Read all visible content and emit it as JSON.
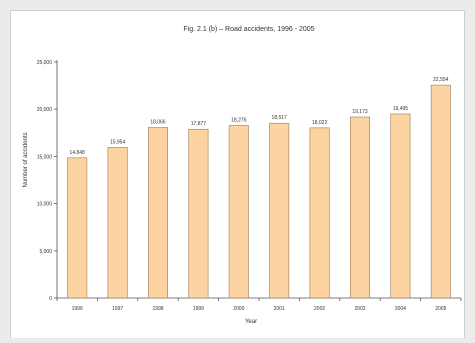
{
  "colors": {
    "bar_fill": "#fdd3a2",
    "bar_stroke": "#9c7d58",
    "axis": "#555555",
    "background": "#ebebeb",
    "panel": "#ffffff"
  },
  "chart_data": {
    "type": "bar",
    "title": "Fig. 2.1 (b) – Road accidents, 1996 - 2005",
    "xlabel": "Year",
    "ylabel": "Number of accidents",
    "ylim": [
      0,
      25000
    ],
    "yticks": [
      "0",
      "5,000",
      "10,000",
      "15,000",
      "20,000",
      "25,000"
    ],
    "categories": [
      "1996",
      "1997",
      "1998",
      "1999",
      "2000",
      "2001",
      "2002",
      "2003",
      "2004",
      "2005"
    ],
    "values": [
      14848,
      15954,
      18066,
      17877,
      18276,
      18517,
      18022,
      19173,
      19495,
      22554
    ],
    "data_labels": [
      "14,848",
      "15,954",
      "18,066",
      "17,877",
      "18,276",
      "18,517",
      "18,022",
      "19,173",
      "19,495",
      "22,554"
    ],
    "grid": false,
    "legend": "none"
  }
}
